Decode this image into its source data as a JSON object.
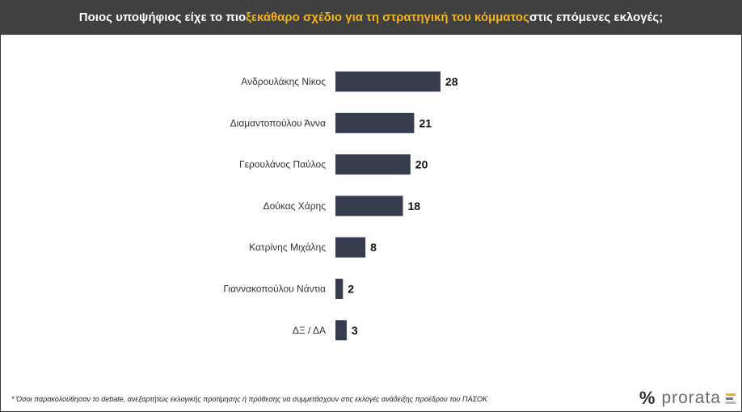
{
  "header": {
    "title_before": "Ποιος υποψήφιος είχε το πιο ",
    "title_highlight": "ξεκάθαρο σχέδιο για τη στρατηγική του κόμματος",
    "title_after": " στις επόμενες εκλογές;"
  },
  "footnote": "* Όσοι παρακολούθησαν το debate, ανεξαρτήτως εκλογικής προτίμησης ή πρόθεσης να συμμετάσχουν στις εκλογές ανάδειξης προέδρου του ΠΑΣΟΚ",
  "logo": {
    "symbol": "%",
    "brand": "prorata"
  },
  "colors": {
    "header_bg": "#404040",
    "highlight": "#f0b31c",
    "bar": "#343c4e",
    "logo_bars": [
      "#f0b31c",
      "#7a7a7a",
      "#b5b5b5"
    ]
  },
  "chart_data": {
    "type": "bar",
    "orientation": "horizontal",
    "categories": [
      "Ανδρουλάκης Νίκος",
      "Διαμαντοπούλου Άννα",
      "Γερουλάνος Παύλος",
      "Δούκας Χάρης",
      "Κατρίνης Μιχάλης",
      "Γιαννακοπούλου Νάντια",
      "ΔΞ / ΔΑ"
    ],
    "values": [
      28,
      21,
      20,
      18,
      8,
      2,
      3
    ],
    "data_labels": [
      "28",
      "21",
      "20",
      "18",
      "8",
      "2",
      "3"
    ],
    "grid": false,
    "legend": "none"
  }
}
